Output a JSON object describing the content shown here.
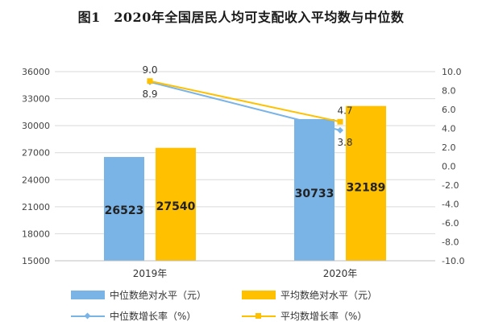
{
  "figure_title": "图1　2020年全国居民人均可支配收入平均数与中位数",
  "colors": {
    "median_bar": "#7ab3e6",
    "mean_bar": "#ffc000",
    "median_line": "#7ab3e6",
    "mean_line": "#ffc000"
  },
  "chart_data": {
    "type": "bar",
    "title": "图1　2020年全国居民人均可支配收入平均数与中位数",
    "categories": [
      "2019年",
      "2020年"
    ],
    "series": [
      {
        "name": "中位数绝对水平（元）",
        "type": "bar",
        "axis": "left",
        "values": [
          26523,
          30733
        ]
      },
      {
        "name": "平均数绝对水平（元）",
        "type": "bar",
        "axis": "left",
        "values": [
          27540,
          32189
        ]
      },
      {
        "name": "中位数增长率（%）",
        "type": "line",
        "axis": "right",
        "values": [
          8.9,
          3.8
        ]
      },
      {
        "name": "平均数增长率（%）",
        "type": "line",
        "axis": "right",
        "values": [
          9.0,
          4.7
        ]
      }
    ],
    "left_axis": {
      "ylim": [
        15000,
        36000
      ],
      "ticks": [
        "15000",
        "18000",
        "21000",
        "24000",
        "27000",
        "30000",
        "33000",
        "36000"
      ]
    },
    "right_axis": {
      "ylim": [
        -10.0,
        10.0
      ],
      "ticks": [
        "-10.0",
        "-8.0",
        "-6.0",
        "-4.0",
        "-2.0",
        "0.0",
        "2.0",
        "4.0",
        "6.0",
        "8.0",
        "10.0"
      ]
    },
    "legend_position": "bottom",
    "grid": true
  }
}
